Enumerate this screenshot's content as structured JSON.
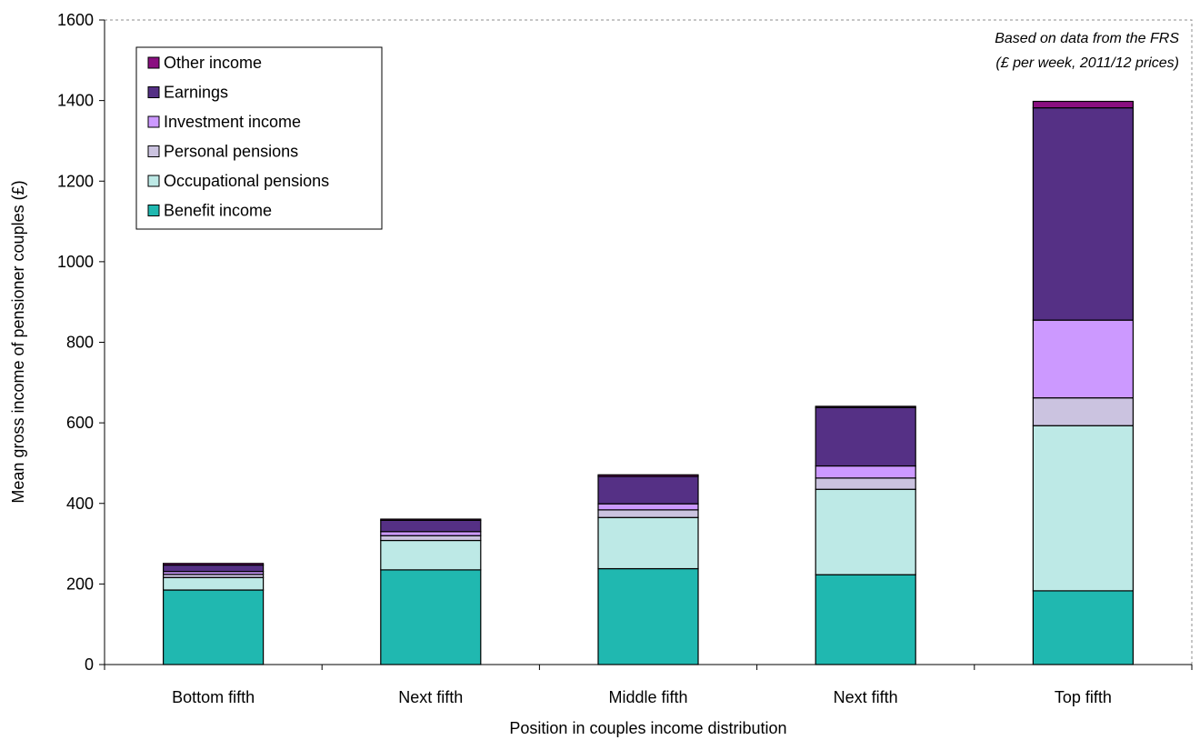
{
  "chart_data": {
    "type": "bar",
    "stacked": true,
    "xlabel": "Position in couples income distribution",
    "ylabel": "Mean gross income of pensioner couples (£)",
    "ylim": [
      0,
      1600
    ],
    "yticks": [
      0,
      200,
      400,
      600,
      800,
      1000,
      1200,
      1400,
      1600
    ],
    "grid": false,
    "legend_position": "top-left",
    "annotation": [
      "Based on data from the FRS",
      "(£ per week, 2011/12 prices)"
    ],
    "categories": [
      "Bottom fifth",
      "Next fifth",
      "Middle fifth",
      "Next fifth",
      "Top fifth"
    ],
    "series": [
      {
        "name": "Benefit income",
        "color": "#20b8b0",
        "values": [
          185,
          235,
          238,
          223,
          183
        ]
      },
      {
        "name": "Occupational pensions",
        "color": "#bde9e6",
        "values": [
          31,
          73,
          127,
          212,
          410
        ]
      },
      {
        "name": "Personal pensions",
        "color": "#cbc3e0",
        "values": [
          8,
          12,
          19,
          28,
          69
        ]
      },
      {
        "name": "Investment income",
        "color": "#cc99ff",
        "values": [
          7,
          10,
          15,
          30,
          193
        ]
      },
      {
        "name": "Earnings",
        "color": "#553085",
        "values": [
          16,
          28,
          68,
          145,
          527
        ]
      },
      {
        "name": "Other income",
        "color": "#8a0f80",
        "values": [
          4,
          3,
          4,
          3,
          16
        ]
      }
    ]
  }
}
